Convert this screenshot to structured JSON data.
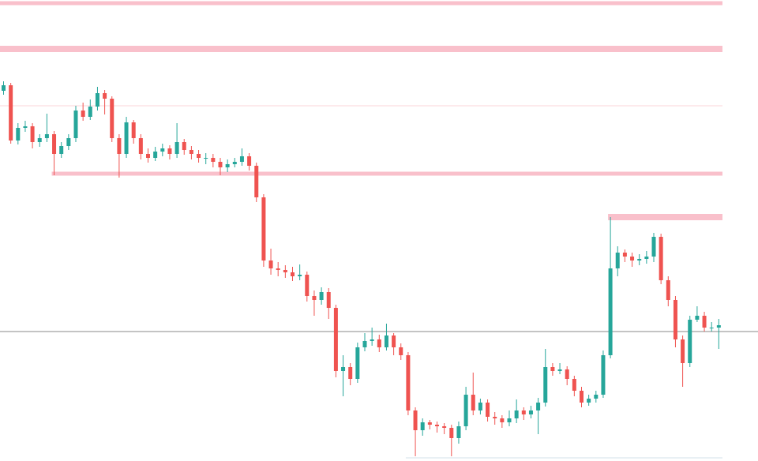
{
  "chart_data": {
    "type": "candlestick",
    "up_color": "#26a69a",
    "down_color": "#ef5350",
    "ylim": [
      16,
      600
    ],
    "open": [
      485,
      492,
      422,
      438,
      440,
      420,
      425,
      430,
      405,
      415,
      425,
      460,
      452,
      465,
      482,
      475,
      425,
      405,
      445,
      425,
      405,
      400,
      408,
      412,
      405,
      420,
      410,
      405,
      400,
      400,
      395,
      388,
      392,
      395,
      402,
      390,
      350,
      270,
      260,
      258,
      255,
      250,
      252,
      225,
      220,
      230,
      210,
      130,
      135,
      120,
      160,
      168,
      170,
      160,
      175,
      160,
      150,
      80,
      55,
      65,
      62,
      60,
      58,
      45,
      60,
      100,
      80,
      90,
      72,
      70,
      65,
      70,
      80,
      75,
      80,
      90,
      135,
      130,
      132,
      120,
      105,
      90,
      95,
      100,
      150,
      260,
      280,
      275,
      270,
      272,
      275,
      300,
      245,
      220,
      170,
      140,
      195,
      200,
      185,
      185
    ],
    "high": [
      497,
      495,
      444,
      447,
      444,
      430,
      456,
      434,
      420,
      430,
      466,
      470,
      474,
      490,
      486,
      478,
      430,
      452,
      448,
      430,
      412,
      414,
      418,
      416,
      444,
      424,
      415,
      410,
      406,
      405,
      400,
      398,
      400,
      412,
      406,
      394,
      354,
      285,
      268,
      264,
      262,
      265,
      256,
      232,
      236,
      235,
      214,
      150,
      140,
      166,
      178,
      185,
      176,
      190,
      178,
      165,
      154,
      84,
      70,
      68,
      66,
      64,
      62,
      66,
      110,
      128,
      95,
      94,
      78,
      74,
      80,
      94,
      84,
      86,
      96,
      158,
      140,
      140,
      136,
      124,
      110,
      100,
      105,
      156,
      325,
      288,
      284,
      280,
      278,
      282,
      305,
      304,
      250,
      225,
      175,
      200,
      212,
      205,
      192,
      196
    ],
    "low": [
      480,
      418,
      417,
      433,
      412,
      414,
      420,
      378,
      400,
      410,
      420,
      447,
      448,
      460,
      455,
      420,
      375,
      400,
      418,
      398,
      394,
      396,
      402,
      398,
      400,
      404,
      398,
      394,
      392,
      388,
      378,
      382,
      388,
      390,
      384,
      344,
      262,
      252,
      250,
      248,
      244,
      245,
      218,
      200,
      214,
      196,
      122,
      98,
      112,
      115,
      155,
      162,
      154,
      156,
      150,
      144,
      74,
      22,
      48,
      56,
      52,
      50,
      22,
      38,
      55,
      74,
      75,
      66,
      62,
      58,
      60,
      64,
      68,
      70,
      50,
      85,
      124,
      126,
      112,
      98,
      84,
      86,
      90,
      96,
      146,
      250,
      268,
      262,
      264,
      266,
      268,
      240,
      212,
      160,
      110,
      135,
      192,
      180,
      180,
      158
    ],
    "close": [
      492,
      422,
      438,
      440,
      420,
      425,
      430,
      405,
      415,
      425,
      460,
      452,
      465,
      482,
      475,
      425,
      405,
      445,
      425,
      405,
      400,
      408,
      412,
      405,
      420,
      410,
      405,
      400,
      400,
      395,
      388,
      392,
      395,
      402,
      390,
      350,
      270,
      260,
      258,
      255,
      250,
      252,
      225,
      220,
      230,
      210,
      130,
      135,
      120,
      160,
      168,
      170,
      160,
      175,
      160,
      150,
      80,
      55,
      65,
      62,
      60,
      58,
      45,
      60,
      100,
      80,
      90,
      72,
      70,
      65,
      70,
      80,
      75,
      80,
      90,
      135,
      130,
      132,
      120,
      105,
      90,
      95,
      100,
      150,
      260,
      280,
      275,
      270,
      272,
      275,
      300,
      245,
      220,
      170,
      140,
      195,
      200,
      185,
      185,
      188
    ],
    "levels": [
      {
        "value": 596,
        "color": "#f9c0cb",
        "start": 0
      },
      {
        "value": 538,
        "color": "#f9c0cb",
        "start": 0
      },
      {
        "value": 466,
        "color": "#fbd5d9",
        "start": 0
      },
      {
        "value": 380,
        "color": "#f9c0cb",
        "start": 7
      },
      {
        "value": 325,
        "color": "#f9c0cb",
        "start": 84
      },
      {
        "value": 180,
        "color": "#8a8a8a",
        "start": 0
      },
      {
        "value": 20,
        "color": "#d3e2e8",
        "start": 56
      }
    ]
  }
}
